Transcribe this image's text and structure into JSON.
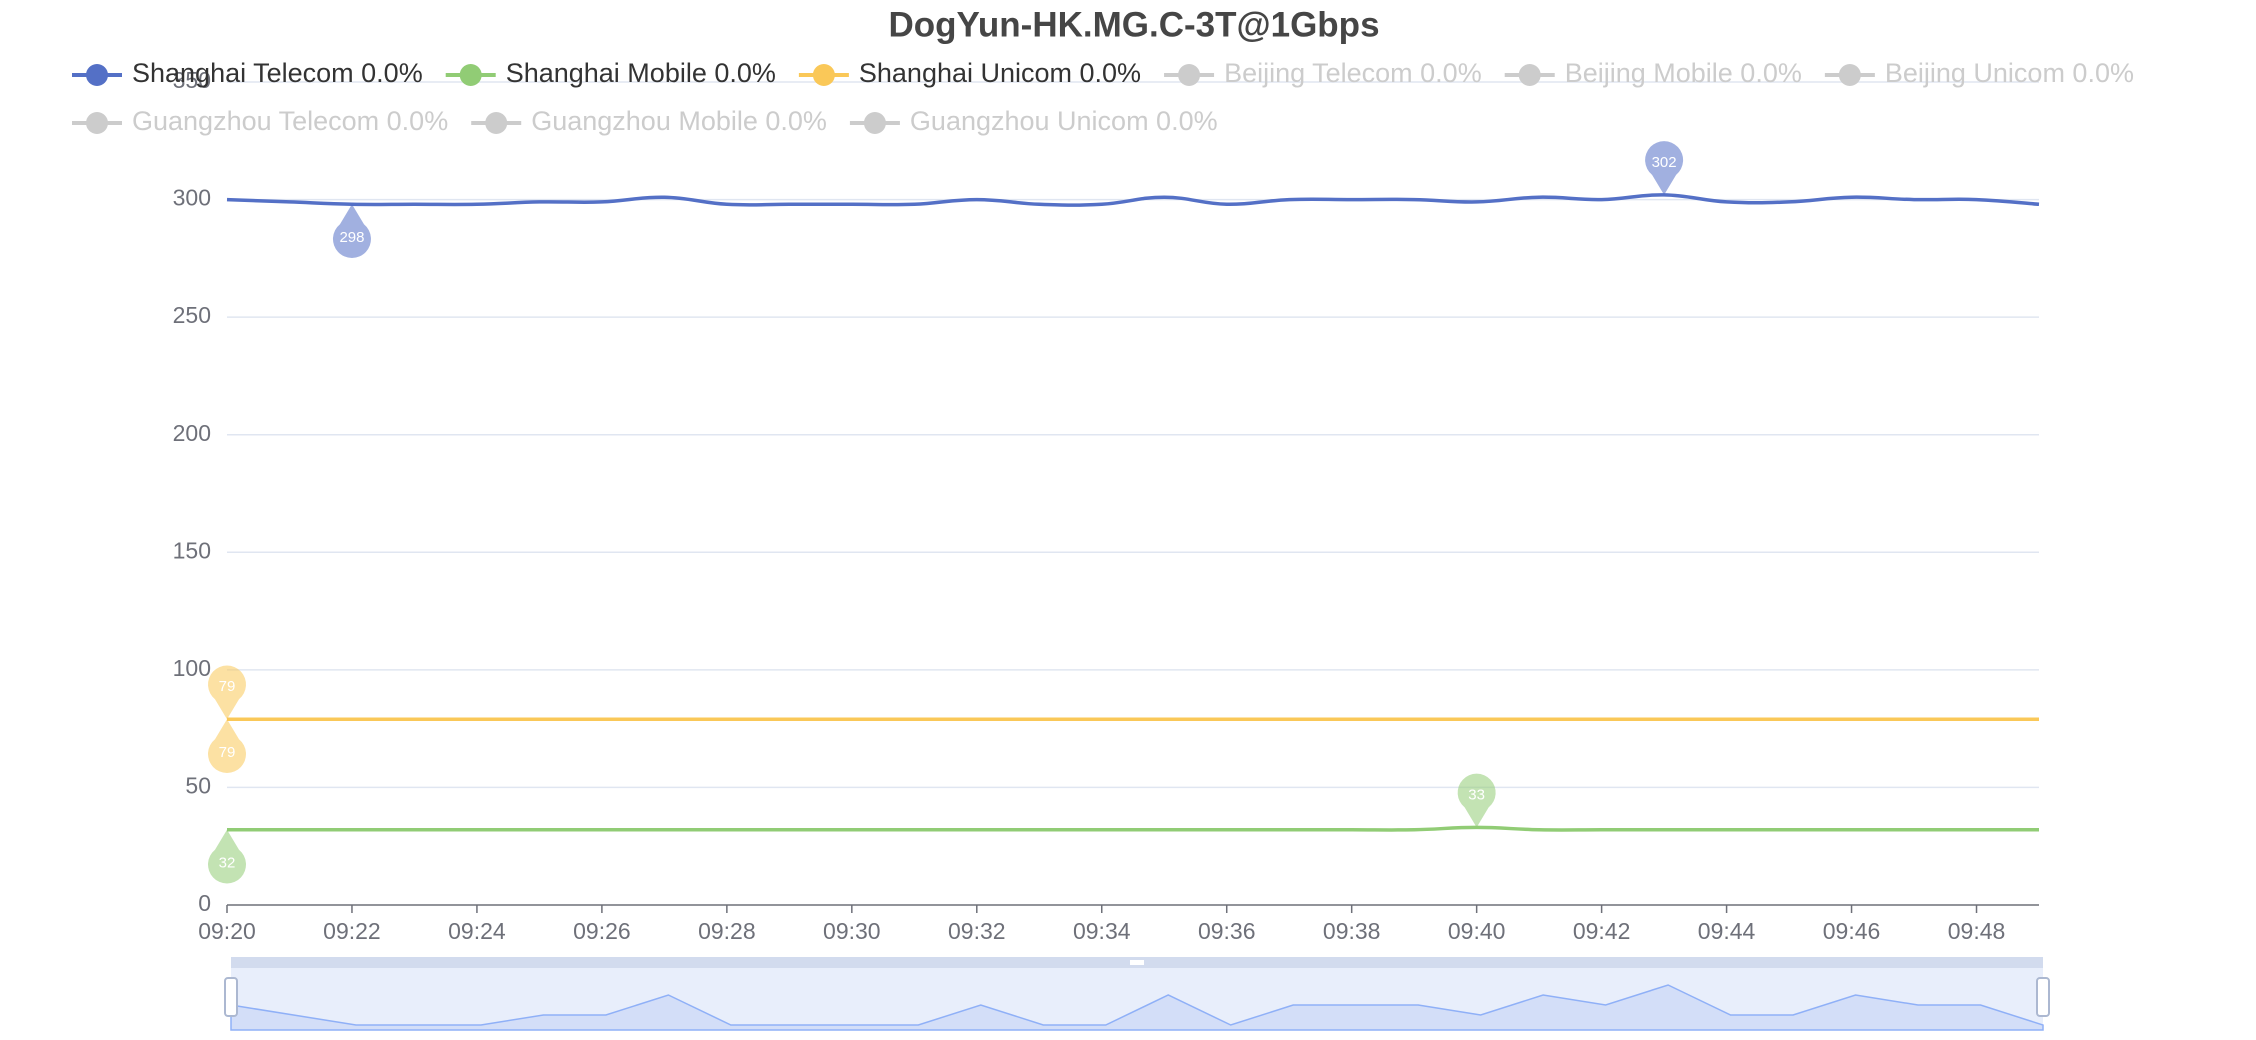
{
  "chart_data": {
    "type": "line",
    "title": "DogYun-HK.MG.C-3T@1Gbps",
    "categories": [
      "09:20",
      null,
      "09:22",
      null,
      "09:24",
      null,
      "09:26",
      null,
      "09:28",
      null,
      "09:30",
      null,
      "09:32",
      null,
      "09:34",
      null,
      "09:36",
      null,
      "09:38",
      null,
      "09:40",
      null,
      "09:42",
      null,
      "09:44",
      null,
      "09:46",
      null,
      "09:48",
      null
    ],
    "series": [
      {
        "name": "Shanghai Telecom 0.0%",
        "color": "#5470c6",
        "values": [
          300,
          299,
          298,
          298,
          298,
          299,
          299,
          301,
          298,
          298,
          298,
          298,
          300,
          298,
          298,
          301,
          298,
          300,
          300,
          300,
          299,
          301,
          300,
          302,
          299,
          299,
          301,
          300,
          300,
          298
        ]
      },
      {
        "name": "Shanghai Mobile 0.0%",
        "color": "#91cc75",
        "values": [
          32,
          32,
          32,
          32,
          32,
          32,
          32,
          32,
          32,
          32,
          32,
          32,
          32,
          32,
          32,
          32,
          32,
          32,
          32,
          32,
          33,
          32,
          32,
          32,
          32,
          32,
          32,
          32,
          32,
          32
        ]
      },
      {
        "name": "Shanghai Unicom 0.0%",
        "color": "#fac858",
        "values": [
          79,
          79,
          79,
          79,
          79,
          79,
          79,
          79,
          79,
          79,
          79,
          79,
          79,
          79,
          79,
          79,
          79,
          79,
          79,
          79,
          79,
          79,
          79,
          79,
          79,
          79,
          79,
          79,
          79,
          79
        ]
      },
      {
        "name": "Beijing Telecom 0.0%",
        "color": "#ee6666",
        "selected": false
      },
      {
        "name": "Beijing Mobile 0.0%",
        "color": "#73c0de",
        "selected": false
      },
      {
        "name": "Beijing Unicom 0.0%",
        "color": "#3ba272",
        "selected": false
      },
      {
        "name": "Guangzhou Telecom 0.0%",
        "color": "#fc8452",
        "selected": false
      },
      {
        "name": "Guangzhou Mobile 0.0%",
        "color": "#9a60b4",
        "selected": false
      },
      {
        "name": "Guangzhou Unicom 0.0%",
        "color": "#ea7ccc",
        "selected": false
      }
    ],
    "legend_inactive_color": "#cccccc",
    "ylim": [
      0,
      350
    ],
    "yticks": [
      0,
      50,
      100,
      150,
      200,
      250,
      300,
      350
    ],
    "grid": true,
    "smooth": true
  }
}
